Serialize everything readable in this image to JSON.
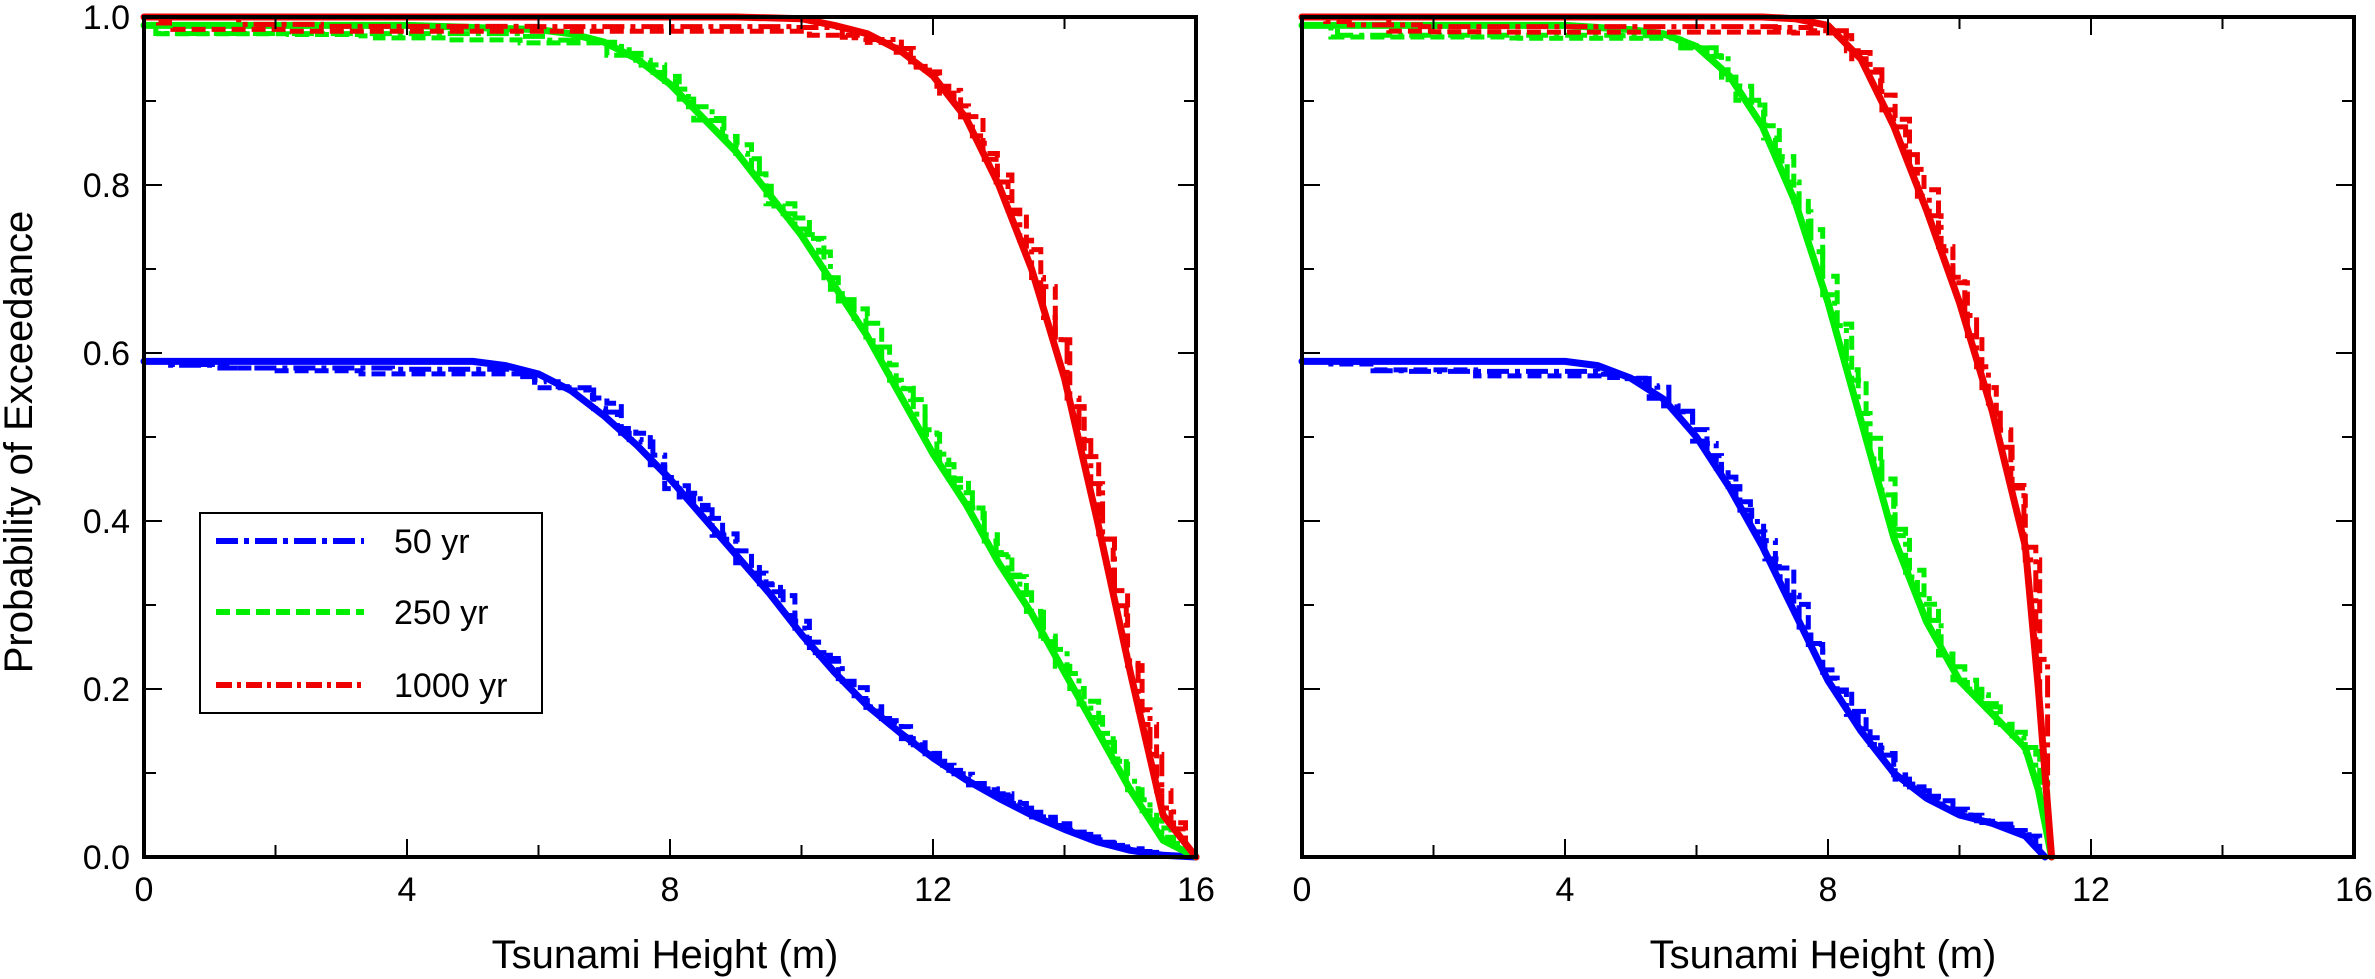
{
  "chart_data": [
    {
      "type": "line",
      "xlabel": "Tsunami Height (m)",
      "ylabel": "Probability of Exceedance",
      "xlim": [
        0,
        16
      ],
      "ylim": [
        0,
        1.0
      ],
      "xticks": [
        "0",
        "4",
        "8",
        "12",
        "16"
      ],
      "yticks": [
        "0.0",
        "0.2",
        "0.4",
        "0.6",
        "0.8",
        "1.0"
      ],
      "grid": false,
      "legend_position": "lower-left",
      "series": [
        {
          "name": "50 yr",
          "color": "#0000ff",
          "x": [
            0,
            2,
            4,
            5,
            5.5,
            6,
            6.5,
            7,
            7.5,
            8,
            8.5,
            9,
            9.5,
            10,
            10.5,
            11,
            11.5,
            12,
            12.5,
            13,
            13.5,
            14,
            14.5,
            15,
            15.5,
            16
          ],
          "y": [
            0.59,
            0.59,
            0.59,
            0.59,
            0.585,
            0.575,
            0.555,
            0.525,
            0.49,
            0.45,
            0.405,
            0.36,
            0.315,
            0.265,
            0.22,
            0.18,
            0.148,
            0.118,
            0.092,
            0.07,
            0.05,
            0.033,
            0.018,
            0.008,
            0.002,
            0.0
          ]
        },
        {
          "name": "250 yr",
          "color": "#00ee00",
          "x": [
            0,
            2,
            4,
            6,
            6.5,
            7,
            7.5,
            8,
            8.5,
            9,
            9.5,
            10,
            10.5,
            11,
            11.5,
            12,
            12.5,
            13,
            13.5,
            14,
            14.5,
            15,
            15.5,
            16
          ],
          "y": [
            0.99,
            0.99,
            0.99,
            0.985,
            0.98,
            0.97,
            0.95,
            0.92,
            0.88,
            0.84,
            0.79,
            0.74,
            0.68,
            0.62,
            0.55,
            0.48,
            0.42,
            0.35,
            0.29,
            0.22,
            0.15,
            0.08,
            0.02,
            0.0
          ]
        },
        {
          "name": "1000 yr",
          "color": "#ee0000",
          "x": [
            0,
            2,
            4,
            6,
            8,
            9,
            10,
            10.5,
            11,
            11.5,
            12,
            12.5,
            13,
            13.5,
            14,
            14.5,
            15,
            15.5,
            16
          ],
          "y": [
            1.0,
            1.0,
            1.0,
            1.0,
            1.0,
            1.0,
            0.998,
            0.99,
            0.98,
            0.96,
            0.93,
            0.88,
            0.8,
            0.7,
            0.57,
            0.4,
            0.22,
            0.05,
            0.0
          ]
        }
      ]
    },
    {
      "type": "line",
      "xlabel": "Tsunami Height (m)",
      "ylabel": "",
      "xlim": [
        0,
        16
      ],
      "ylim": [
        0,
        1.0
      ],
      "xticks": [
        "0",
        "4",
        "8",
        "12",
        "16"
      ],
      "yticks": [],
      "grid": false,
      "series": [
        {
          "name": "50 yr",
          "color": "#0000ff",
          "x": [
            0,
            2,
            4,
            4.5,
            5,
            5.5,
            6,
            6.5,
            7,
            7.5,
            8,
            8.5,
            9,
            9.5,
            10,
            10.5,
            11,
            11.3
          ],
          "y": [
            0.59,
            0.59,
            0.59,
            0.585,
            0.57,
            0.545,
            0.5,
            0.44,
            0.37,
            0.29,
            0.21,
            0.15,
            0.1,
            0.07,
            0.05,
            0.04,
            0.025,
            0.0
          ]
        },
        {
          "name": "250 yr",
          "color": "#00ee00",
          "x": [
            0,
            2,
            4,
            5,
            5.5,
            6,
            6.5,
            7,
            7.5,
            8,
            8.5,
            9,
            9.5,
            10,
            10.5,
            11,
            11.2,
            11.4
          ],
          "y": [
            0.99,
            0.99,
            0.99,
            0.985,
            0.98,
            0.965,
            0.93,
            0.87,
            0.78,
            0.66,
            0.52,
            0.38,
            0.28,
            0.21,
            0.17,
            0.13,
            0.08,
            0.0
          ]
        },
        {
          "name": "1000 yr",
          "color": "#ee0000",
          "x": [
            0,
            2,
            4,
            6,
            7,
            7.5,
            8,
            8.5,
            9,
            9.5,
            10,
            10.5,
            11,
            11.2,
            11.4
          ],
          "y": [
            1.0,
            1.0,
            1.0,
            1.0,
            1.0,
            0.998,
            0.99,
            0.95,
            0.87,
            0.77,
            0.66,
            0.53,
            0.37,
            0.2,
            0.0
          ]
        }
      ]
    }
  ]
}
